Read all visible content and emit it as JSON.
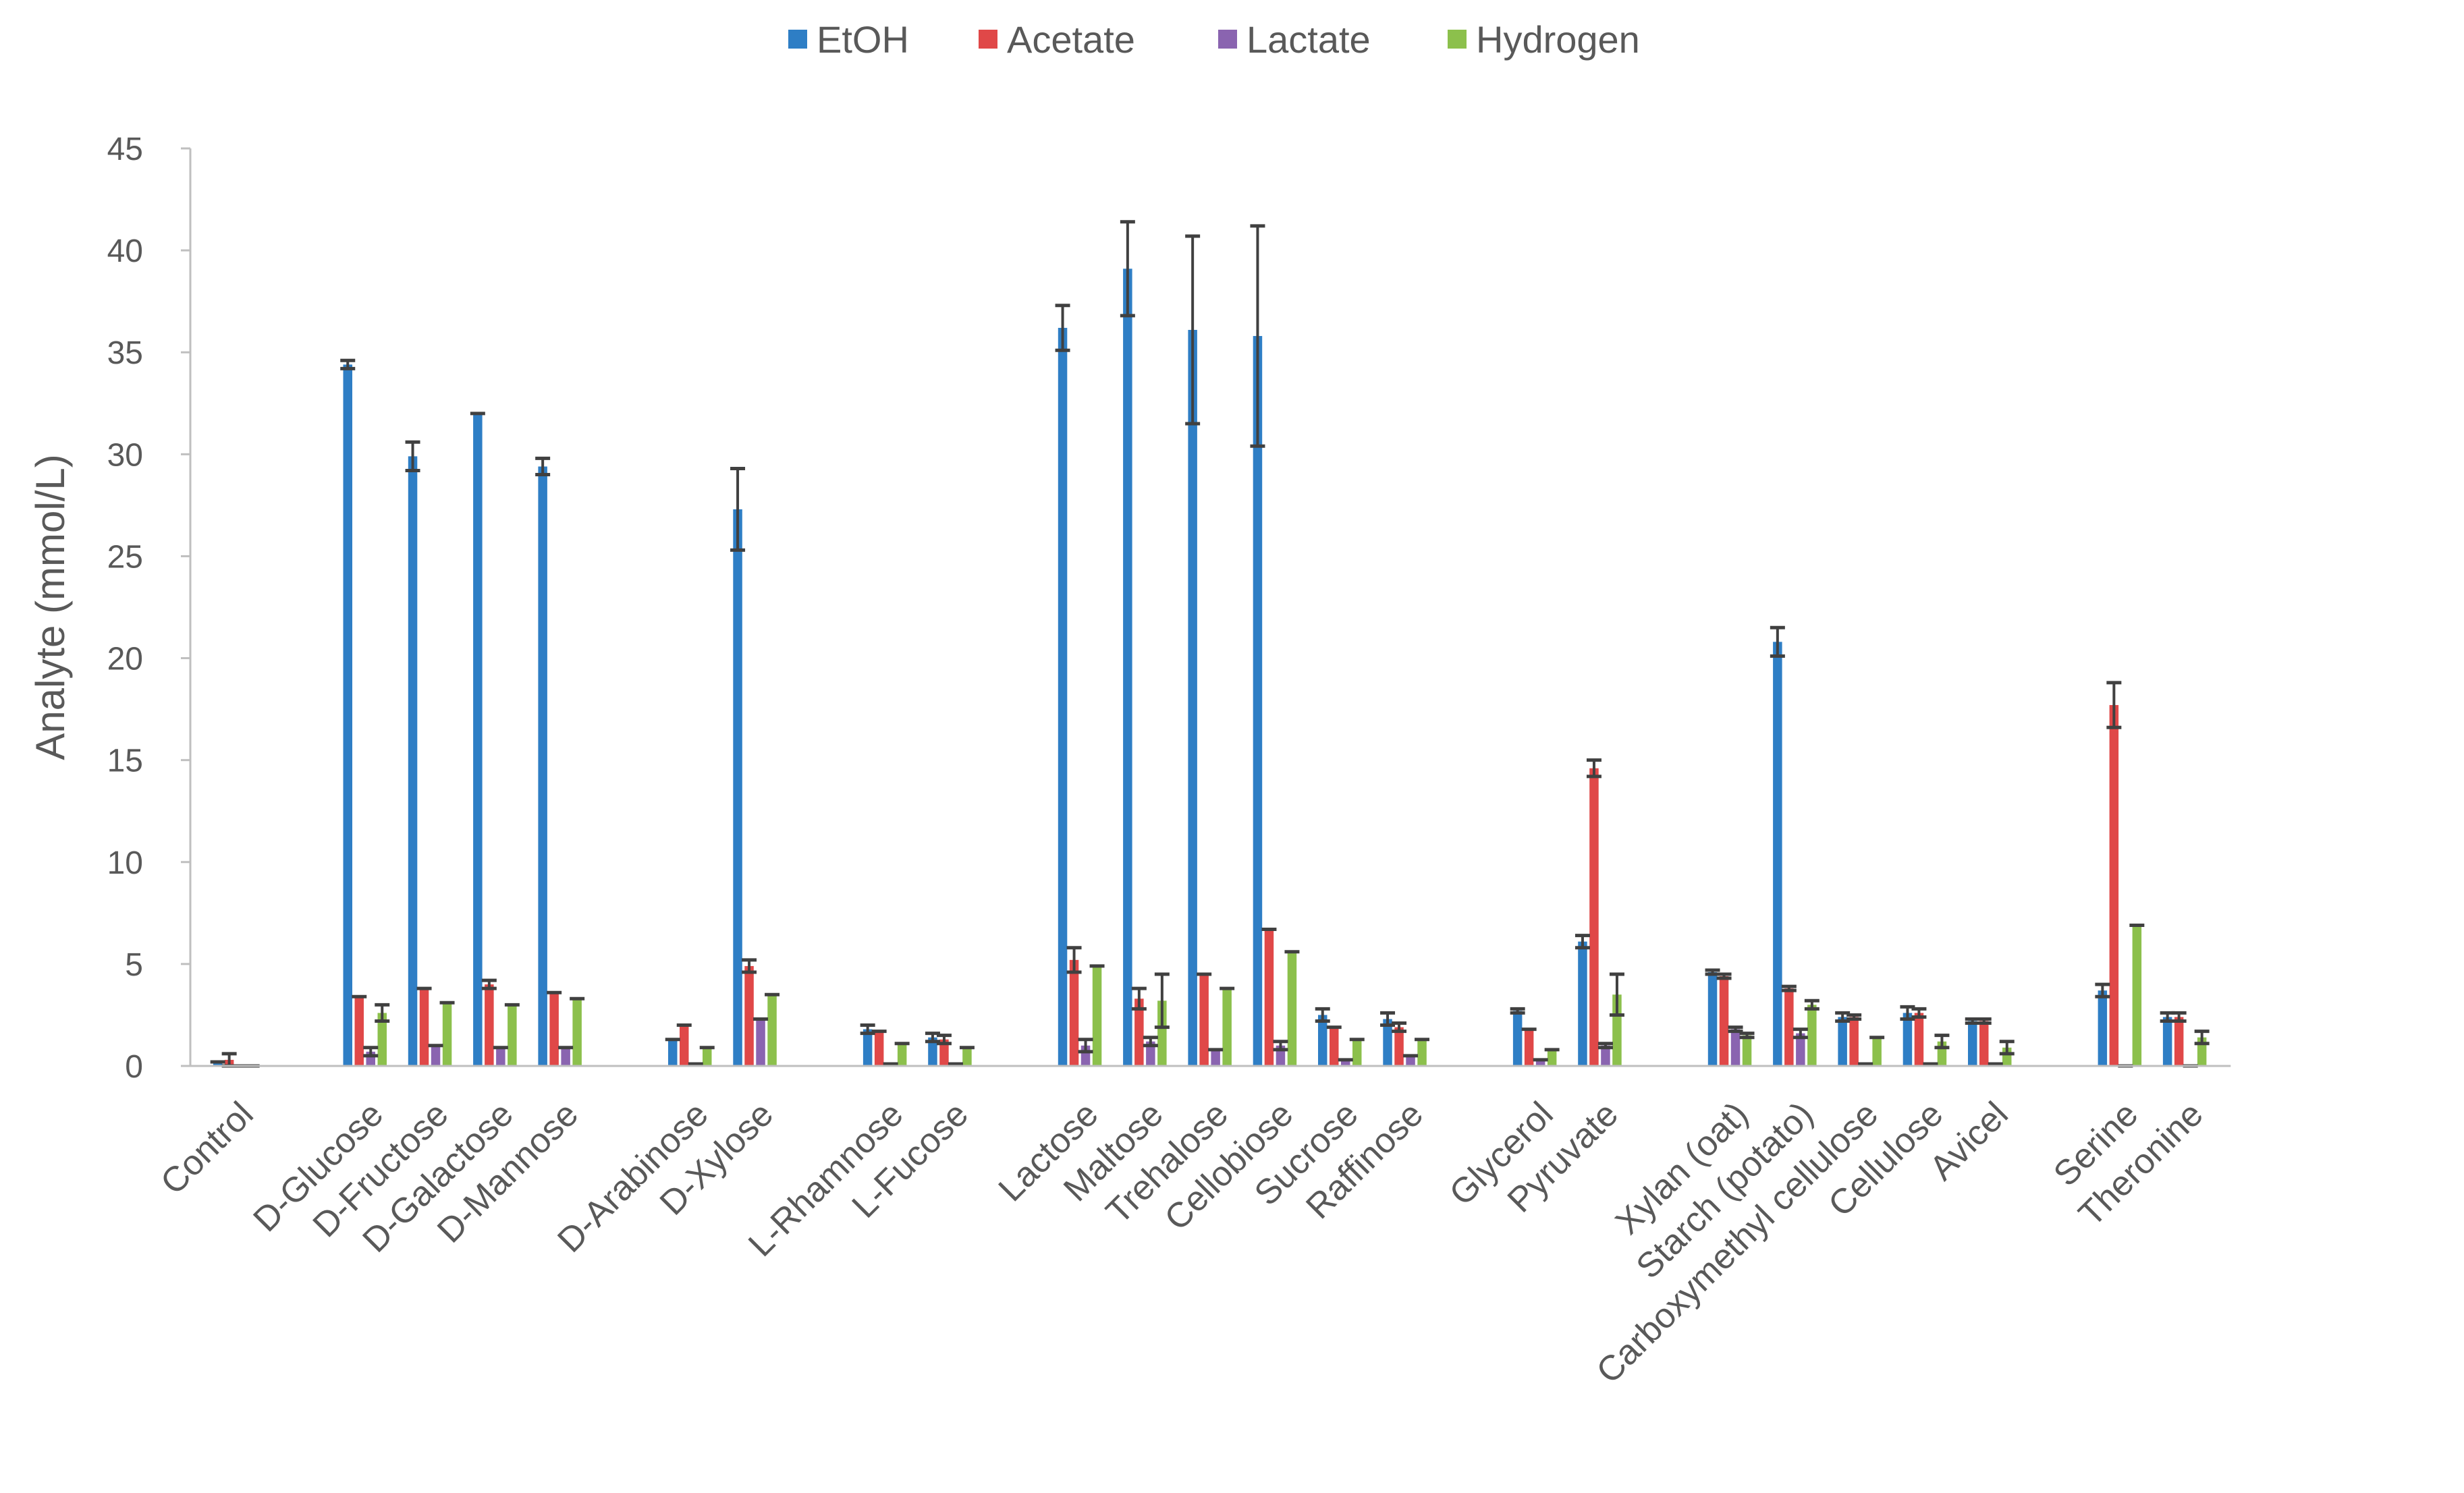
{
  "chart_data": {
    "type": "bar",
    "title": "",
    "xlabel": "",
    "ylabel": "Analyte (mmol/L)",
    "ylim": [
      0,
      45
    ],
    "yticks": [
      0,
      5,
      10,
      15,
      20,
      25,
      30,
      35,
      40,
      45
    ],
    "grid": false,
    "legend_position": "top-center",
    "series_colors": [
      "#2E7EC5",
      "#E04848",
      "#8A64B0",
      "#8CC04C"
    ],
    "errorbar_color": "#404040",
    "slots": [
      "Control",
      null,
      "D-Glucose",
      "D-Fructose",
      "D-Galactose",
      "D-Mannose",
      null,
      "D-Arabinose",
      "D-Xylose",
      null,
      "L-Rhamnose",
      "L-Fucose",
      null,
      "Lactose",
      "Maltose",
      "Trehalose",
      "Cellobiose",
      "Sucrose",
      "Raffinose",
      null,
      "Glycerol",
      "Pyruvate",
      null,
      "Xylan (oat)",
      "Starch (potato)",
      "Carboxymethyl cellulose",
      "Cellulose",
      "Avicel",
      null,
      "Serine",
      "Theronine"
    ],
    "categories": [
      "Control",
      "D-Glucose",
      "D-Fructose",
      "D-Galactose",
      "D-Mannose",
      "D-Arabinose",
      "D-Xylose",
      "L-Rhamnose",
      "L-Fucose",
      "Lactose",
      "Maltose",
      "Trehalose",
      "Cellobiose",
      "Sucrose",
      "Raffinose",
      "Glycerol",
      "Pyruvate",
      "Xylan (oat)",
      "Starch (potato)",
      "Carboxymethyl cellulose",
      "Cellulose",
      "Avicel",
      "Serine",
      "Theronine"
    ],
    "series": [
      {
        "name": "EtOH",
        "values": [
          0.2,
          34.4,
          29.9,
          32.0,
          29.4,
          1.3,
          27.3,
          1.8,
          1.4,
          36.2,
          39.1,
          36.1,
          35.8,
          2.5,
          2.3,
          2.7,
          6.1,
          4.6,
          20.8,
          2.4,
          2.6,
          2.2,
          3.7,
          2.4
        ],
        "errors": [
          0.0,
          0.2,
          0.7,
          0.0,
          0.4,
          0.0,
          2.0,
          0.2,
          0.2,
          1.1,
          2.3,
          4.6,
          5.4,
          0.3,
          0.3,
          0.1,
          0.3,
          0.1,
          0.7,
          0.2,
          0.3,
          0.1,
          0.3,
          0.2
        ]
      },
      {
        "name": "Acetate",
        "values": [
          0.3,
          3.4,
          3.8,
          4.0,
          3.6,
          2.0,
          4.9,
          1.7,
          1.3,
          5.2,
          3.3,
          4.5,
          6.7,
          1.9,
          1.9,
          1.8,
          14.6,
          4.4,
          3.8,
          2.4,
          2.6,
          2.2,
          17.7,
          2.4
        ],
        "errors": [
          0.3,
          0.0,
          0.0,
          0.2,
          0.0,
          0.0,
          0.3,
          0.0,
          0.2,
          0.6,
          0.5,
          0.0,
          0.0,
          0.0,
          0.2,
          0.0,
          0.4,
          0.1,
          0.1,
          0.1,
          0.2,
          0.1,
          1.1,
          0.2
        ]
      },
      {
        "name": "Lactate",
        "values": [
          0.0,
          0.7,
          1.0,
          0.9,
          0.9,
          0.1,
          2.3,
          0.1,
          0.1,
          1.0,
          1.2,
          0.8,
          1.0,
          0.3,
          0.5,
          0.3,
          1.0,
          1.8,
          1.6,
          0.1,
          0.1,
          0.1,
          0.0,
          0.0
        ],
        "errors": [
          0.0,
          0.2,
          0.0,
          0.0,
          0.0,
          0.0,
          0.0,
          0.0,
          0.0,
          0.3,
          0.2,
          0.0,
          0.2,
          0.0,
          0.0,
          0.0,
          0.1,
          0.1,
          0.2,
          0.0,
          0.0,
          0.0,
          0.0,
          0.0
        ]
      },
      {
        "name": "Hydrogen",
        "values": [
          0.0,
          2.6,
          3.1,
          3.0,
          3.3,
          0.9,
          3.5,
          1.1,
          0.9,
          4.9,
          3.2,
          3.8,
          5.6,
          1.3,
          1.3,
          0.8,
          3.5,
          1.5,
          3.0,
          1.4,
          1.2,
          0.9,
          6.9,
          1.4
        ],
        "errors": [
          0.0,
          0.4,
          0.0,
          0.0,
          0.0,
          0.0,
          0.0,
          0.0,
          0.0,
          0.0,
          1.3,
          0.0,
          0.0,
          0.0,
          0.0,
          0.0,
          1.0,
          0.1,
          0.2,
          0.0,
          0.3,
          0.3,
          0.0,
          0.3
        ]
      }
    ]
  }
}
